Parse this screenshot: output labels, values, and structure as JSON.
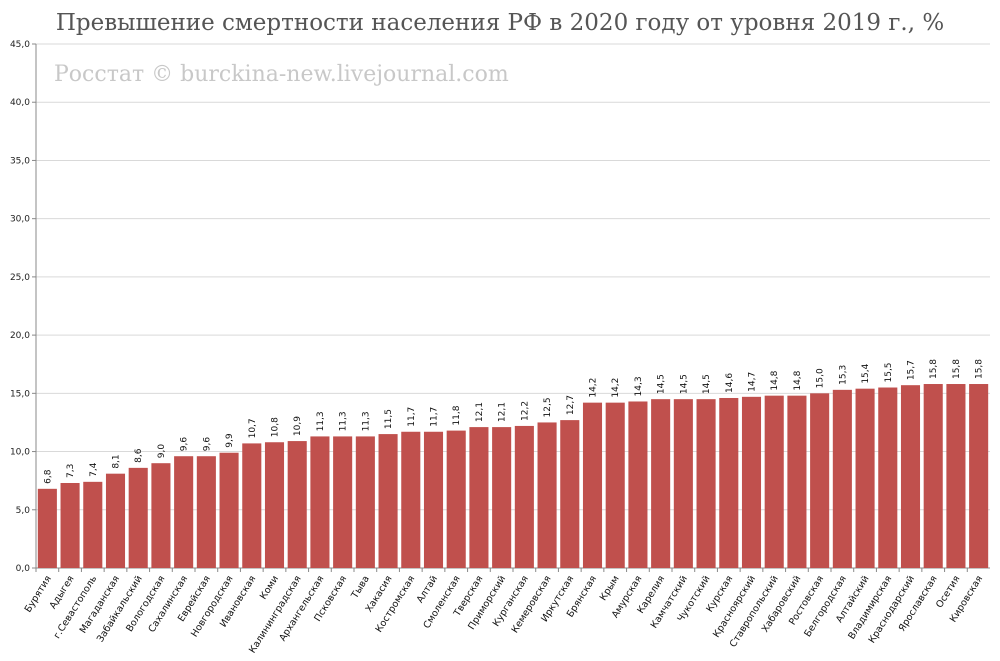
{
  "chart_data": {
    "type": "bar",
    "title": "Превышение смертности населения РФ в 2020 году от уровня 2019 г., %",
    "watermark": "Росстат © burckina-new.livejournal.com",
    "ylim": [
      0,
      45
    ],
    "y_ticks": [
      "0,0",
      "5,0",
      "10,0",
      "15,0",
      "20,0",
      "25,0",
      "30,0",
      "35,0",
      "40,0",
      "45,0"
    ],
    "bar_color": "#c0504d",
    "grid": true,
    "categories": [
      "Бурятия",
      "Адыгея",
      "г.Севастополь",
      "Магаданская",
      "Забайкальский",
      "Вологодская",
      "Сахалинская",
      "Еврейская",
      "Новгородская",
      "Ивановская",
      "Коми",
      "Калининградская",
      "Архангельская",
      "Псковская",
      "Тыва",
      "Хакасия",
      "Костромская",
      "Алтай",
      "Смоленская",
      "Тверская",
      "Приморский",
      "Курганская",
      "Кемеровская",
      "Иркутская",
      "Брянская",
      "Крым",
      "Амурская",
      "Карелия",
      "Камчатский",
      "Чукотский",
      "Курская",
      "Красноярский",
      "Ставропольский",
      "Хабаровский",
      "Ростовская",
      "Белгородская",
      "Алтайский",
      "Владимирская",
      "Краснодарский",
      "Ярославская",
      "Осетия",
      "Кировская"
    ],
    "values": [
      6.8,
      7.3,
      7.4,
      8.1,
      8.6,
      9.0,
      9.6,
      9.6,
      9.9,
      10.7,
      10.8,
      10.9,
      11.3,
      11.3,
      11.3,
      11.5,
      11.7,
      11.7,
      11.8,
      12.1,
      12.1,
      12.2,
      12.5,
      12.7,
      14.2,
      14.2,
      14.3,
      14.5,
      14.5,
      14.5,
      14.6,
      14.7,
      14.8,
      14.8,
      15.0,
      15.3,
      15.4,
      15.5,
      15.7,
      15.8,
      15.8,
      15.8
    ],
    "value_labels": [
      "6,8",
      "7,3",
      "7,4",
      "8,1",
      "8,6",
      "9,0",
      "9,6",
      "9,6",
      "9,9",
      "10,7",
      "10,8",
      "10,9",
      "11,3",
      "11,3",
      "11,3",
      "11,5",
      "11,7",
      "11,7",
      "11,8",
      "12,1",
      "12,1",
      "12,2",
      "12,5",
      "12,7",
      "14,2",
      "14,2",
      "14,3",
      "14,5",
      "14,5",
      "14,5",
      "14,6",
      "14,7",
      "14,8",
      "14,8",
      "15,0",
      "15,3",
      "15,4",
      "15,5",
      "15,7",
      "15,8",
      "15,8",
      "15,8"
    ]
  }
}
